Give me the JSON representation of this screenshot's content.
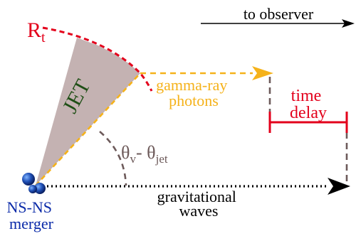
{
  "labels": {
    "observer": "to observer",
    "radius": "R",
    "radius_sub": "t",
    "jet": "JET",
    "photons_line1": "gamma-ray",
    "photons_line2": "photons",
    "delay_line1": "time",
    "delay_line2": "delay",
    "angle_theta": "θ",
    "angle_sub_v": "v",
    "angle_minus": "- θ",
    "angle_sub_jet": "jet",
    "waves_line1": "gravitational",
    "waves_line2": "waves",
    "source_line1": "NS-NS",
    "source_line2": "merger"
  },
  "colors": {
    "jet_fill": "#c4b2b2",
    "radius_red": "#e3001b",
    "photon_orange": "#f5b21a",
    "dark_text": "#000000",
    "angle_gray": "#6d5a5a",
    "jet_text": "#1f4f16",
    "source_blue": "#0a2aa8",
    "sphere_blue": "#1f4fb5"
  }
}
